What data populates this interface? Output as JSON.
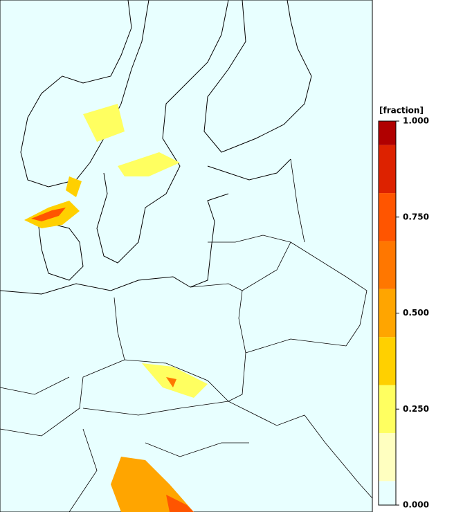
{
  "legend": {
    "title": "[fraction]",
    "bins": [
      0,
      0.0625,
      0.1875,
      0.3125,
      0.4375,
      0.5625,
      0.6875,
      0.8125,
      0.9375,
      1.0
    ],
    "colors": [
      "#e8ffff",
      "#ffffc0",
      "#ffff60",
      "#ffd000",
      "#ffa500",
      "#ff7700",
      "#ff5500",
      "#dd2200",
      "#b00000"
    ],
    "range": [
      0,
      1
    ],
    "ticks": [
      {
        "value": 0,
        "label": "0.000"
      },
      {
        "value": 0.25,
        "label": "0.250"
      },
      {
        "value": 0.5,
        "label": "0.500"
      },
      {
        "value": 0.75,
        "label": "0.750"
      },
      {
        "value": 1,
        "label": "1.000"
      }
    ]
  }
}
